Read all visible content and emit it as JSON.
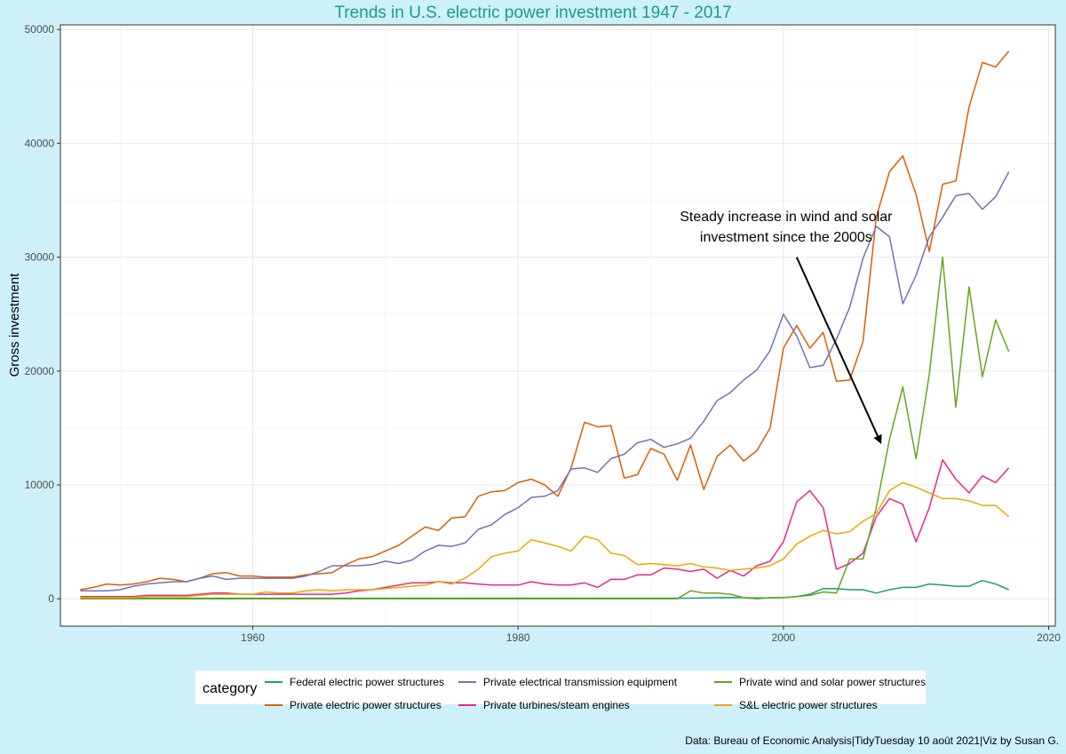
{
  "chart_data": {
    "type": "line",
    "title": "Trends in U.S. electric power investment 1947 - 2017",
    "ylabel": "Gross investment",
    "xlabel": "",
    "xlim": [
      1945.5,
      2020.5
    ],
    "ylim": [
      -2400,
      50400
    ],
    "x_ticks": [
      1960,
      1980,
      2000,
      2020
    ],
    "y_ticks": [
      0,
      10000,
      20000,
      30000,
      40000,
      50000
    ],
    "grid": true,
    "legend_position": "bottom",
    "legend_title": "category",
    "annotation": {
      "lines": [
        "Steady increase in wind and solar",
        "investment since the 2000s"
      ],
      "arrow_from": [
        2001,
        30000
      ],
      "arrow_to": [
        2007.3,
        13800
      ]
    },
    "x": [
      1947,
      1948,
      1949,
      1950,
      1951,
      1952,
      1953,
      1954,
      1955,
      1956,
      1957,
      1958,
      1959,
      1960,
      1961,
      1962,
      1963,
      1964,
      1965,
      1966,
      1967,
      1968,
      1969,
      1970,
      1971,
      1972,
      1973,
      1974,
      1975,
      1976,
      1977,
      1978,
      1979,
      1980,
      1981,
      1982,
      1983,
      1984,
      1985,
      1986,
      1987,
      1988,
      1989,
      1990,
      1991,
      1992,
      1993,
      1994,
      1995,
      1996,
      1997,
      1998,
      1999,
      2000,
      2001,
      2002,
      2003,
      2004,
      2005,
      2006,
      2007,
      2008,
      2009,
      2010,
      2011,
      2012,
      2013,
      2014,
      2015,
      2016,
      2017
    ],
    "series": [
      {
        "name": "Federal electric power structures",
        "color": "#1b9e77",
        "values": [
          50,
          50,
          50,
          50,
          50,
          50,
          50,
          50,
          50,
          50,
          50,
          50,
          50,
          50,
          50,
          50,
          50,
          50,
          50,
          50,
          50,
          50,
          50,
          50,
          50,
          50,
          50,
          50,
          50,
          50,
          50,
          50,
          50,
          50,
          50,
          50,
          50,
          50,
          50,
          50,
          50,
          50,
          50,
          50,
          50,
          50,
          60,
          80,
          100,
          120,
          100,
          80,
          80,
          100,
          200,
          400,
          900,
          900,
          800,
          800,
          500,
          800,
          1000,
          1000,
          1300,
          1200,
          1100,
          1100,
          1600,
          1300,
          800
        ]
      },
      {
        "name": "Private electric power structures",
        "color": "#d95f02",
        "values": [
          800,
          1000,
          1300,
          1200,
          1300,
          1500,
          1800,
          1700,
          1500,
          1800,
          2200,
          2300,
          2000,
          2000,
          1900,
          1900,
          1900,
          2100,
          2200,
          2300,
          3000,
          3500,
          3700,
          4200,
          4700,
          5500,
          6300,
          6000,
          7100,
          7200,
          9000,
          9400,
          9500,
          10200,
          10500,
          10000,
          9000,
          11500,
          15500,
          15100,
          15200,
          10600,
          10900,
          13200,
          12700,
          10400,
          13500,
          9600,
          12500,
          13500,
          12100,
          13000,
          15000,
          22000,
          24000,
          22000,
          23400,
          19100,
          19200,
          22600,
          33500,
          37500,
          38900,
          35500,
          30500,
          36400,
          36700,
          43200,
          47100,
          46700,
          48100
        ]
      },
      {
        "name": "Private electrical transmission equipment",
        "color": "#7570b3",
        "values": [
          700,
          700,
          700,
          800,
          1100,
          1300,
          1400,
          1500,
          1500,
          1800,
          2000,
          1700,
          1800,
          1800,
          1800,
          1800,
          1800,
          2000,
          2400,
          2900,
          2900,
          2900,
          3000,
          3300,
          3100,
          3400,
          4200,
          4700,
          4600,
          4900,
          6100,
          6500,
          7400,
          8000,
          8900,
          9000,
          9500,
          11400,
          11500,
          11100,
          12300,
          12700,
          13700,
          14000,
          13300,
          13600,
          14100,
          15600,
          17400,
          18100,
          19200,
          20100,
          21800,
          25000,
          23100,
          20300,
          20500,
          22800,
          25600,
          29900,
          32700,
          31800,
          25900,
          28400,
          31800,
          33500,
          35400,
          35600,
          34200,
          35300,
          37500
        ]
      },
      {
        "name": "Private turbines/steam engines",
        "color": "#e7298a",
        "values": [
          200,
          200,
          200,
          200,
          200,
          300,
          300,
          300,
          300,
          400,
          500,
          500,
          400,
          400,
          400,
          400,
          400,
          400,
          400,
          400,
          500,
          700,
          800,
          1000,
          1200,
          1400,
          1400,
          1500,
          1400,
          1400,
          1300,
          1200,
          1200,
          1200,
          1500,
          1300,
          1200,
          1200,
          1400,
          1000,
          1700,
          1700,
          2100,
          2100,
          2700,
          2600,
          2400,
          2600,
          1800,
          2500,
          2000,
          2900,
          3300,
          5000,
          8500,
          9500,
          8000,
          2600,
          3100,
          4000,
          7200,
          8800,
          8300,
          5000,
          8000,
          12200,
          10500,
          9300,
          10800,
          10200,
          11500
        ]
      },
      {
        "name": "Private wind and solar power structures",
        "color": "#66a61e",
        "values": [
          0,
          0,
          0,
          0,
          0,
          0,
          0,
          0,
          0,
          0,
          0,
          0,
          0,
          0,
          0,
          0,
          0,
          0,
          0,
          0,
          0,
          0,
          0,
          0,
          0,
          0,
          0,
          0,
          0,
          0,
          0,
          0,
          0,
          0,
          0,
          0,
          0,
          0,
          0,
          0,
          0,
          0,
          0,
          0,
          0,
          0,
          700,
          500,
          500,
          400,
          100,
          0,
          100,
          100,
          200,
          300,
          600,
          500,
          3500,
          3500,
          8000,
          14000,
          18600,
          12300,
          19700,
          30000,
          16800,
          27400,
          19500,
          24500,
          21700
        ]
      },
      {
        "name": "S&L electric power structures",
        "color": "#e6ab02",
        "values": [
          100,
          100,
          100,
          100,
          100,
          200,
          200,
          200,
          200,
          300,
          400,
          400,
          400,
          400,
          600,
          500,
          500,
          700,
          800,
          700,
          800,
          800,
          800,
          900,
          1000,
          1100,
          1200,
          1500,
          1300,
          1800,
          2600,
          3700,
          4000,
          4200,
          5200,
          4900,
          4600,
          4200,
          5500,
          5200,
          4000,
          3800,
          3000,
          3100,
          3000,
          2900,
          3100,
          2800,
          2700,
          2500,
          2600,
          2700,
          2900,
          3500,
          4800,
          5500,
          6000,
          5700,
          5900,
          6800,
          7500,
          9500,
          10200,
          9800,
          9300,
          8800,
          8800,
          8600,
          8200,
          8200,
          7200
        ]
      }
    ]
  },
  "legend": {
    "title": "category",
    "items": [
      "Federal electric power structures",
      "Private electrical transmission equipment",
      "Private wind and solar power structures",
      "Private electric power structures",
      "Private turbines/steam engines",
      "S&L electric power structures"
    ]
  },
  "caption": "Data: Bureau of Economic Analysis|TidyTuesday 10 août 2021|Viz by Susan G."
}
